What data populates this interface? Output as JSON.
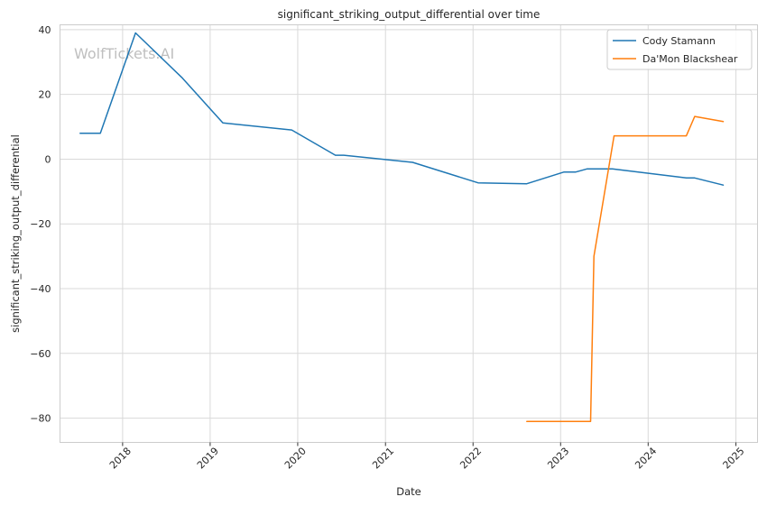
{
  "chart_data": {
    "type": "line",
    "title": "significant_striking_output_differential over time",
    "xlabel": "Date",
    "ylabel": "significant_striking_output_differential",
    "watermark": "WolfTickets.AI",
    "xlim": [
      "2017-04-15",
      "2025-04-01"
    ],
    "ylim": [
      -87.5,
      41.5
    ],
    "x_ticks": [
      "2018",
      "2019",
      "2020",
      "2021",
      "2022",
      "2023",
      "2024",
      "2025"
    ],
    "y_ticks": [
      40,
      20,
      0,
      -20,
      -40,
      -60,
      -80
    ],
    "grid": true,
    "legend_position": "top-right",
    "series": [
      {
        "name": "Cody Stamann",
        "color": "#1f77b4",
        "x": [
          "2017-07-08",
          "2017-09-30",
          "2018-02-24",
          "2018-09-08",
          "2019-02-23",
          "2019-12-07",
          "2020-06-06",
          "2020-07-11",
          "2021-04-24",
          "2022-01-22",
          "2022-08-13",
          "2023-01-14",
          "2023-03-04",
          "2023-04-22",
          "2023-08-05",
          "2024-06-08",
          "2024-07-13",
          "2024-11-09"
        ],
        "values": [
          8,
          8,
          39,
          25,
          11.2,
          9,
          1.2,
          1.2,
          -1,
          -7.3,
          -7.6,
          -4,
          -4,
          -3,
          -3,
          -5.8,
          -5.8,
          -8
        ]
      },
      {
        "name": "Da'Mon Blackshear",
        "color": "#ff7f0e",
        "x": [
          "2022-08-13",
          "2023-05-06",
          "2023-05-20",
          "2023-08-12",
          "2024-06-08",
          "2024-07-13",
          "2024-11-09"
        ],
        "values": [
          -81,
          -81,
          -30,
          7.2,
          7.2,
          13.2,
          11.6
        ]
      }
    ]
  }
}
